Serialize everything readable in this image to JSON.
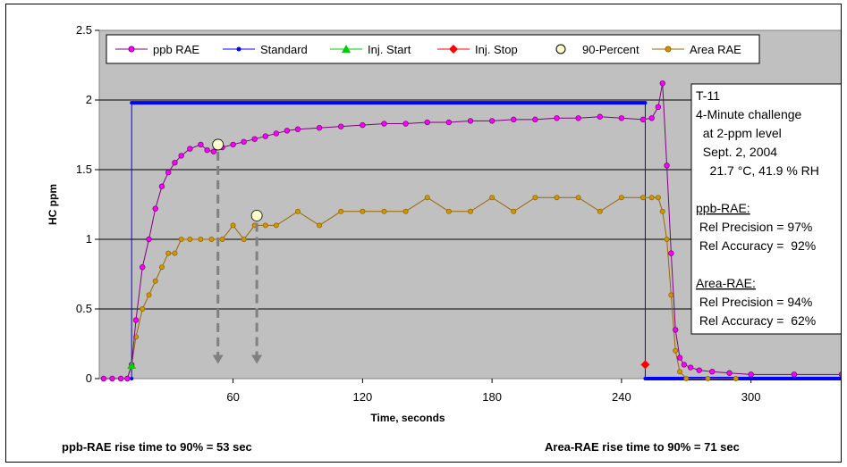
{
  "chart_data": {
    "type": "line",
    "title": "",
    "xlabel": "Time, seconds",
    "ylabel": "HC ppm",
    "xlim": [
      -2,
      342
    ],
    "ylim": [
      0,
      2.5
    ],
    "x_ticks": [
      60,
      120,
      180,
      240,
      300
    ],
    "x_tick_labels": [
      "60",
      "120",
      "180",
      "240",
      "300"
    ],
    "y_ticks": [
      0,
      0.5,
      1,
      1.5,
      2,
      2.5
    ],
    "y_tick_labels": [
      "0",
      "0.5",
      "1",
      "1.5",
      "2",
      "2.5"
    ],
    "grid": "horizontal",
    "plot_background": "#c0c0c0",
    "legend_position": "top",
    "series": [
      {
        "name": "ppb RAE",
        "color": "#800080",
        "marker_fill": "#ff00ff",
        "marker": "circle",
        "x": [
          0,
          4,
          8,
          11,
          13,
          15,
          18,
          21,
          24,
          27,
          30,
          33,
          36,
          40,
          45,
          48,
          51,
          55,
          60,
          65,
          70,
          75,
          80,
          85,
          90,
          100,
          110,
          120,
          130,
          140,
          150,
          160,
          170,
          180,
          190,
          200,
          210,
          220,
          230,
          240,
          250,
          254,
          257,
          259,
          261,
          263,
          265,
          267,
          269,
          272,
          276,
          282,
          290,
          300,
          320,
          342
        ],
        "y": [
          0,
          0,
          0,
          0,
          0.1,
          0.42,
          0.8,
          1.0,
          1.22,
          1.38,
          1.48,
          1.55,
          1.6,
          1.65,
          1.68,
          1.64,
          1.63,
          1.66,
          1.68,
          1.7,
          1.72,
          1.74,
          1.76,
          1.78,
          1.79,
          1.8,
          1.81,
          1.82,
          1.83,
          1.83,
          1.84,
          1.84,
          1.85,
          1.85,
          1.86,
          1.86,
          1.87,
          1.87,
          1.88,
          1.87,
          1.86,
          1.87,
          1.95,
          2.12,
          1.53,
          0.9,
          0.35,
          0.15,
          0.1,
          0.08,
          0.06,
          0.05,
          0.04,
          0.03,
          0.03,
          0.03
        ]
      },
      {
        "name": "Standard",
        "color": "#0000ff",
        "marker": "dot",
        "x": [
          0,
          13,
          13,
          251,
          251,
          342
        ],
        "y": [
          0,
          0,
          1.98,
          1.98,
          0,
          0
        ]
      },
      {
        "name": "Inj. Start",
        "color": "#00cc00",
        "marker": "triangle",
        "x": [
          13
        ],
        "y": [
          0.09
        ]
      },
      {
        "name": "Inj. Stop",
        "color": "#ff0000",
        "marker": "diamond",
        "x": [
          251
        ],
        "y": [
          0.1
        ]
      },
      {
        "name": "90-Percent",
        "color": "#000000",
        "marker_fill": "#ffffcc",
        "marker": "circle",
        "x": [
          53,
          71
        ],
        "y": [
          1.68,
          1.17
        ]
      },
      {
        "name": "Area RAE",
        "color": "#996600",
        "marker_fill": "#cc9900",
        "marker": "circle",
        "x": [
          0,
          4,
          8,
          11,
          13,
          15,
          18,
          21,
          24,
          27,
          30,
          33,
          36,
          40,
          45,
          50,
          55,
          60,
          65,
          70,
          75,
          80,
          90,
          100,
          110,
          120,
          130,
          140,
          150,
          160,
          170,
          180,
          190,
          200,
          210,
          220,
          230,
          240,
          250,
          254,
          257,
          259,
          261,
          263,
          265,
          267,
          270,
          280,
          293
        ],
        "y": [
          0,
          0,
          0,
          0,
          0.1,
          0.3,
          0.5,
          0.6,
          0.7,
          0.8,
          0.9,
          0.9,
          1.0,
          1.0,
          1.0,
          1.0,
          1.0,
          1.1,
          1.0,
          1.1,
          1.1,
          1.1,
          1.2,
          1.1,
          1.2,
          1.2,
          1.2,
          1.2,
          1.3,
          1.2,
          1.2,
          1.3,
          1.2,
          1.3,
          1.3,
          1.3,
          1.2,
          1.3,
          1.3,
          1.3,
          1.3,
          1.2,
          1.0,
          0.6,
          0.2,
          0.05,
          0,
          0,
          0
        ]
      }
    ],
    "annotations": {
      "arrows": [
        {
          "x": 53,
          "y_start": 1.68,
          "y_end": 0.08
        },
        {
          "x": 71,
          "y_start": 1.17,
          "y_end": 0.08
        }
      ],
      "text_box_lines": [
        {
          "text": "T-11",
          "underline": false
        },
        {
          "text": "4-Minute challenge",
          "underline": false
        },
        {
          "text": "  at 2-ppm level",
          "underline": false
        },
        {
          "text": "  Sept. 2, 2004",
          "underline": false
        },
        {
          "text": "    21.7 °C, 41.9 % RH",
          "underline": false
        },
        {
          "text": "",
          "underline": false
        },
        {
          "text": "ppb-RAE:",
          "underline": true
        },
        {
          "text": " Rel Precision = 97%",
          "underline": false
        },
        {
          "text": " Rel Accuracy =  92%",
          "underline": false
        },
        {
          "text": "",
          "underline": false
        },
        {
          "text": "Area-RAE:",
          "underline": true
        },
        {
          "text": " Rel Precision = 94%",
          "underline": false
        },
        {
          "text": " Rel Accuracy =  62%",
          "underline": false
        }
      ]
    }
  },
  "footer": {
    "left": "ppb-RAE rise time to 90% = 53 sec",
    "right": "Area-RAE rise time to 90% = 71 sec"
  }
}
